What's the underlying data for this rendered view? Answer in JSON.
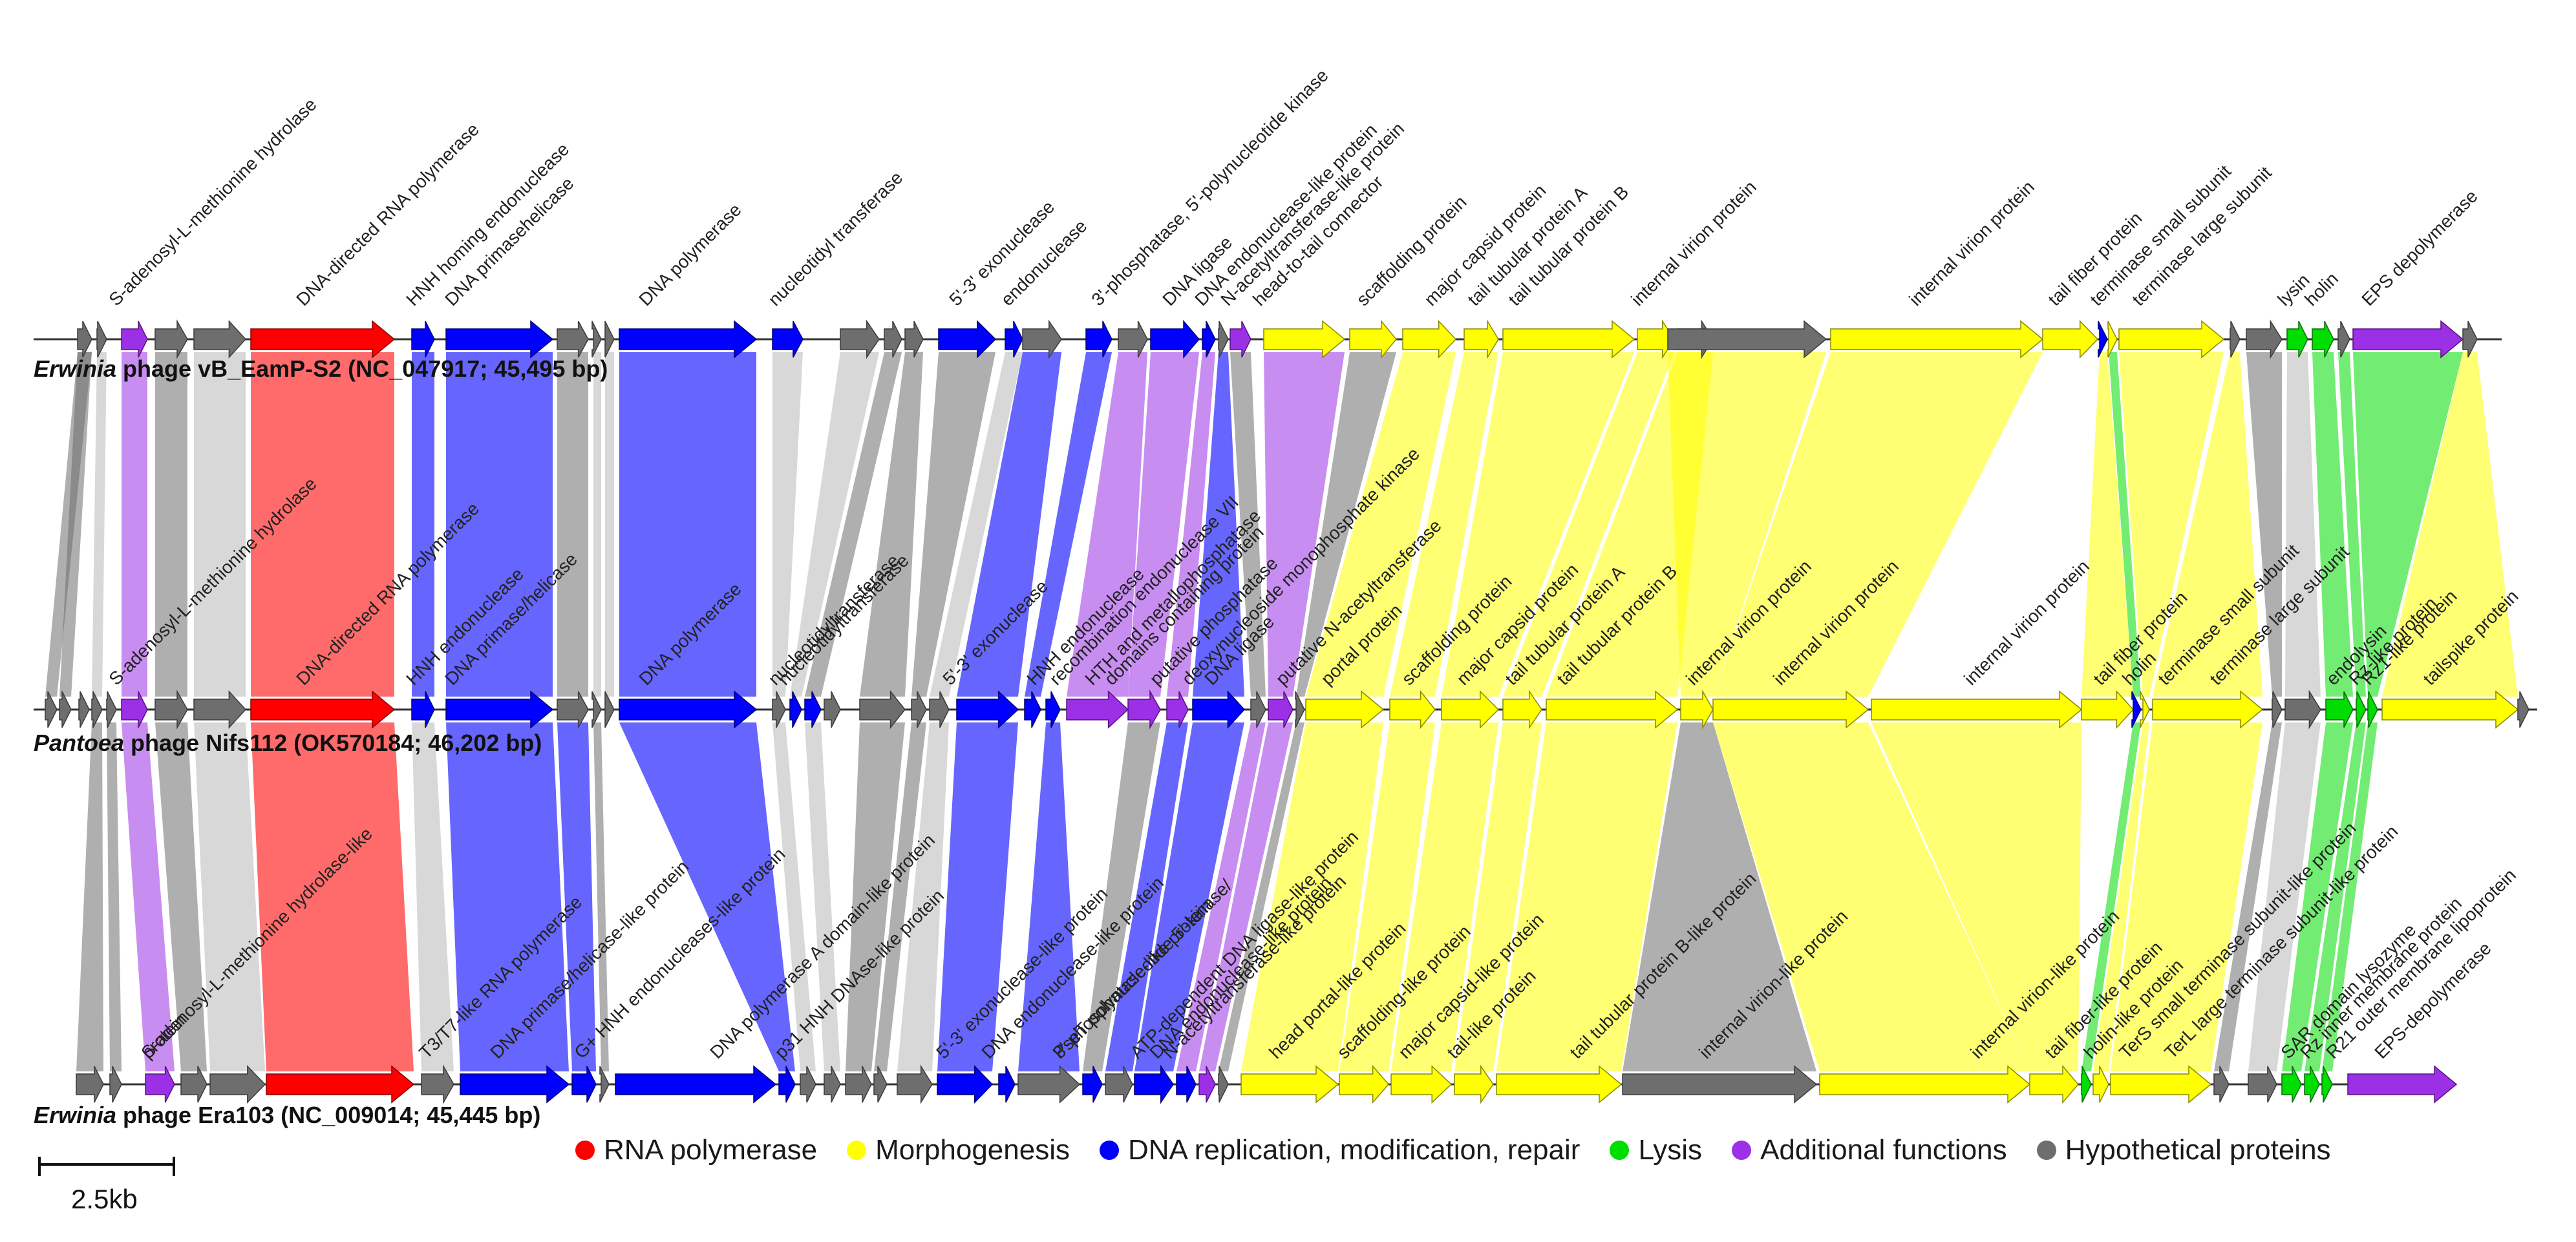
{
  "colors": {
    "rna": "#ff0000",
    "morph": "#ffff00",
    "dna": "#0000ff",
    "lysis": "#00dd00",
    "addfn": "#9b30e6",
    "hypo": "#6e6e6e",
    "hypo_light": "#a9a9a9",
    "text": "#1a1a1a"
  },
  "legend": [
    {
      "label": "RNA polymerase",
      "color": "#ff0000"
    },
    {
      "label": "Morphogenesis",
      "color": "#ffff00"
    },
    {
      "label": "DNA replication, modification, repair",
      "color": "#0000ff"
    },
    {
      "label": "Lysis",
      "color": "#00dd00"
    },
    {
      "label": "Additional functions",
      "color": "#9b30e6"
    },
    {
      "label": "Hypothetical proteins",
      "color": "#6e6e6e"
    }
  ],
  "scale_bar": {
    "label": "2.5kb"
  },
  "genomes": [
    {
      "genus": "Erwinia",
      "rest": " phage vB_EamP-S2 (NC_047917; 45,495 bp)",
      "labels": [
        "S-adenosyl-L-methionine hydrolase",
        "DNA-directed RNA polymerase",
        "HNH homing endonuclease",
        "DNA primasehelicase",
        "DNA polymerase",
        "nucleotidyl transferase",
        "5'-3' exonuclease",
        "endonuclease",
        "3'-phosphatase, 5'-polynucleotide kinase",
        "DNA ligase",
        "DNA endonuclease-like protein",
        "N-acetyltransferase-like protein",
        "head-to-tail connector",
        "scaffolding protein",
        "major capsid protein",
        "tail tubular protein A",
        "tail tubular protein B",
        "internal virion protein",
        "internal virion protein",
        "tail fiber protein",
        "terminase small subunit",
        "terminase large subunit",
        "lysin",
        "holin",
        "EPS depolymerase"
      ]
    },
    {
      "genus": "Pantoea",
      "rest": " phage Nifs112 (OK570184; 46,202 bp)",
      "labels": [
        "S-adenosyl-L-methionine hydrolase",
        "DNA-directed RNA polymerase",
        "HNH endonuclease",
        "DNA primase/helicase",
        "DNA polymerase",
        "nucleotidyltransferase",
        "nucleotidyltransferase",
        "5'-3' exonuclease",
        "HNH endonuclease",
        "recombination endonuclease VII",
        "HTH and metallophosphatase",
        "domains containing protein",
        "putative phosphatase",
        "deoxynucleoside monophosphate kinase",
        "DNA ligase",
        "putative N-acetyltransferase",
        "portal protein",
        "scaffolding protein",
        "major capsid protein",
        "tail tubular protein A",
        "tail tubular protein B",
        "internal virion protein",
        "internal virion protein",
        "internal virion protein",
        "tail fiber protein",
        "holin",
        "terminase small subunit",
        "terminase large subunit",
        "endolysin",
        "Rz-like protein",
        "Rz1-like protein",
        "tailspike protein"
      ]
    },
    {
      "genus": "Erwinia",
      "rest": " phage Era103 (NC_009014; 45,445 bp)",
      "labels": [
        "S-adenosyl-L-methionine hydrolase-like",
        "protein",
        "T3/T7-like RNA polymerase",
        "G+ HNH endonucleases-like protein",
        "DNA primase/helicase-like protein",
        "p31 HNH DNAse-like protein",
        "DNA polymerase A domain-like protein",
        "5'-3' exonuclease-like protein",
        "DNA endonuclease-like protein",
        "PseT polynucleotide 5'-kinase/",
        "3'-phosphatase-like protein",
        "ATP-dependent DNA ligase-like protein",
        "DNA endonuclease-like protein",
        "N-acetyltransferase-like protein",
        "head portal-like protein",
        "scaffolding-like protein",
        "major capsid-like protein",
        "tail-like protein",
        "tail tubular protein B-like protein",
        "internal virion-like protein",
        "internal virion-like protein",
        "tail fiber-like protein",
        "holin-like protein",
        "TerS small terminase subunit-like protein",
        "TerL large terminase subunit-like protein",
        "SAR domain lysozyme",
        "Rz inner membrane protein",
        "R21 outer membrane lipoprotein",
        "EPS-depolymerase"
      ]
    }
  ]
}
